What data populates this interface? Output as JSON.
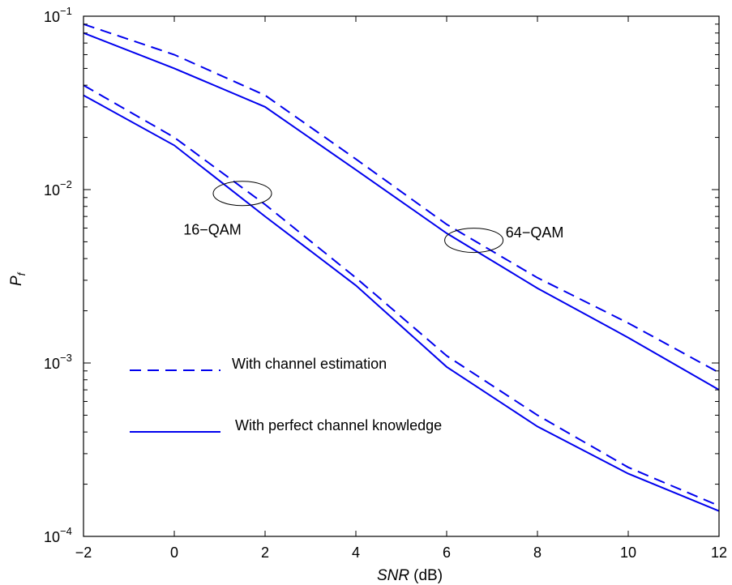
{
  "chart_data": {
    "type": "line",
    "title": "",
    "xlabel": "SNR",
    "xlabel_unit": "(dB)",
    "ylabel": "P",
    "ylabel_sub": "f",
    "xlim": [
      -2,
      12
    ],
    "ylim": [
      0.0001,
      0.1
    ],
    "yscale": "log",
    "grid": false,
    "x_ticks": [
      -2,
      0,
      2,
      4,
      6,
      8,
      10,
      12
    ],
    "x_tick_labels": [
      "−2",
      "0",
      "2",
      "4",
      "6",
      "8",
      "10",
      "12"
    ],
    "y_ticks": [
      {
        "value": 0.0001,
        "base": "10",
        "exp": "−4"
      },
      {
        "value": 0.001,
        "base": "10",
        "exp": "−3"
      },
      {
        "value": 0.01,
        "base": "10",
        "exp": "−2"
      },
      {
        "value": 0.1,
        "base": "10",
        "exp": "−1"
      }
    ],
    "color": "#0000ee",
    "series": [
      {
        "group": "64-QAM",
        "style": "dashed",
        "x": [
          -2,
          0,
          2,
          4,
          6,
          8,
          10,
          12
        ],
        "y": [
          0.09,
          0.06,
          0.035,
          0.015,
          0.0063,
          0.0031,
          0.0017,
          0.00088
        ]
      },
      {
        "group": "64-QAM",
        "style": "solid",
        "x": [
          -2,
          0,
          2,
          4,
          6,
          8,
          10,
          12
        ],
        "y": [
          0.08,
          0.05,
          0.03,
          0.013,
          0.0056,
          0.0027,
          0.0014,
          0.0007
        ]
      },
      {
        "group": "16-QAM",
        "style": "dashed",
        "x": [
          -2,
          0,
          2,
          4,
          6,
          8,
          10,
          12
        ],
        "y": [
          0.04,
          0.02,
          0.0082,
          0.0031,
          0.0011,
          0.0005,
          0.00025,
          0.00015
        ]
      },
      {
        "group": "16-QAM",
        "style": "solid",
        "x": [
          -2,
          0,
          2,
          4,
          6,
          8,
          10,
          12
        ],
        "y": [
          0.035,
          0.018,
          0.007,
          0.0028,
          0.00095,
          0.00043,
          0.00023,
          0.00014
        ]
      }
    ],
    "legend": [
      {
        "style": "dashed",
        "label": "With channel estimation"
      },
      {
        "style": "solid",
        "label": "With perfect channel knowledge"
      }
    ],
    "annotations": [
      {
        "text": "16−QAM",
        "ellipse_center": [
          1.5,
          0.0095
        ],
        "label_at": [
          0.2,
          0.0055
        ]
      },
      {
        "text": "64−QAM",
        "ellipse_center": [
          6.6,
          0.0051
        ],
        "label_at": [
          7.3,
          0.0053
        ]
      }
    ]
  }
}
